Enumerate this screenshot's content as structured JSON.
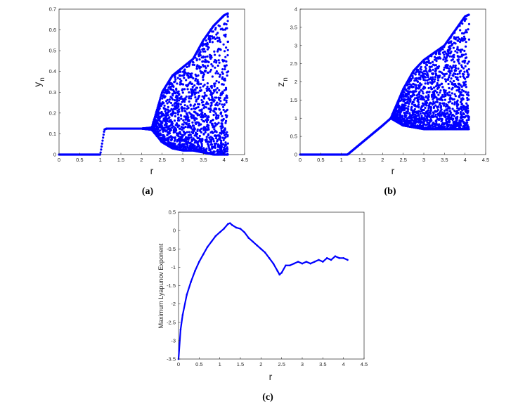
{
  "colors": {
    "series": "#0000ff",
    "axis": "#262626"
  },
  "panel_labels": {
    "a": "(a)",
    "b": "(b)",
    "c": "(c)"
  },
  "chart_data": [
    {
      "id": "a",
      "type": "scatter",
      "xlabel": "r",
      "ylabel_main": "y",
      "ylabel_sub": "n",
      "xlim": [
        0,
        4.5
      ],
      "ylim": [
        0,
        0.7
      ],
      "xticks": [
        "0",
        "0.5",
        "1",
        "1.5",
        "2",
        "2.5",
        "3",
        "3.5",
        "4",
        "4.5"
      ],
      "yticks": [
        "0",
        "0.1",
        "0.2",
        "0.3",
        "0.4",
        "0.5",
        "0.6",
        "0.7"
      ],
      "grid": false,
      "x": [
        0.0,
        0.5,
        1.0,
        1.05,
        1.1,
        1.15,
        1.5,
        2.0,
        2.25,
        2.5,
        2.75,
        3.0,
        3.25,
        3.5,
        3.75,
        4.0,
        4.1
      ],
      "y_min": [
        0,
        0,
        0,
        0.06,
        0.12,
        0.125,
        0.125,
        0.125,
        0.12,
        0.06,
        0.03,
        0.02,
        0.02,
        0.01,
        0.0,
        0.0,
        0.0
      ],
      "y_max": [
        0,
        0,
        0,
        0.06,
        0.12,
        0.125,
        0.125,
        0.125,
        0.13,
        0.3,
        0.38,
        0.42,
        0.46,
        0.55,
        0.62,
        0.67,
        0.68
      ]
    },
    {
      "id": "b",
      "type": "scatter",
      "xlabel": "r",
      "ylabel_main": "z",
      "ylabel_sub": "n",
      "xlim": [
        0,
        4.5
      ],
      "ylim": [
        0,
        4
      ],
      "xticks": [
        "0",
        "0.5",
        "1",
        "1.5",
        "2",
        "2.5",
        "3",
        "3.5",
        "4",
        "4.5"
      ],
      "yticks": [
        "0",
        "0.5",
        "1",
        "1.5",
        "2",
        "2.5",
        "3",
        "3.5",
        "4"
      ],
      "grid": false,
      "x": [
        0.0,
        0.5,
        1.0,
        1.15,
        1.5,
        2.0,
        2.2,
        2.5,
        2.75,
        3.0,
        3.25,
        3.5,
        3.75,
        4.0,
        4.1
      ],
      "y_min": [
        0,
        0,
        0,
        0.0,
        0.33,
        0.8,
        1.0,
        0.8,
        0.75,
        0.7,
        0.7,
        0.7,
        0.7,
        0.7,
        0.7
      ],
      "y_max": [
        0,
        0,
        0,
        0.0,
        0.33,
        0.8,
        1.0,
        1.8,
        2.3,
        2.6,
        2.8,
        3.0,
        3.4,
        3.8,
        3.85
      ]
    },
    {
      "id": "c",
      "type": "line",
      "xlabel": "r",
      "ylabel": "Maximum Lyapunov Exponent",
      "xlim": [
        0,
        4.5
      ],
      "ylim": [
        -3.5,
        0.5
      ],
      "xticks": [
        "0",
        "0.5",
        "1",
        "1.5",
        "2",
        "2.5",
        "3",
        "3.5",
        "4",
        "4.5"
      ],
      "yticks": [
        "-3.5",
        "-3",
        "-2.5",
        "-2",
        "-1.5",
        "-1",
        "-0.5",
        "0",
        "0.5"
      ],
      "grid": false,
      "x": [
        0.0,
        0.05,
        0.1,
        0.2,
        0.3,
        0.4,
        0.5,
        0.6,
        0.7,
        0.8,
        0.9,
        1.0,
        1.1,
        1.2,
        1.25,
        1.3,
        1.4,
        1.5,
        1.6,
        1.7,
        1.8,
        1.9,
        2.0,
        2.1,
        2.2,
        2.3,
        2.4,
        2.45,
        2.5,
        2.6,
        2.7,
        2.8,
        2.9,
        3.0,
        3.1,
        3.2,
        3.3,
        3.4,
        3.5,
        3.6,
        3.7,
        3.8,
        3.9,
        4.0,
        4.1
      ],
      "y": [
        -3.5,
        -2.7,
        -2.3,
        -1.75,
        -1.4,
        -1.1,
        -0.85,
        -0.65,
        -0.45,
        -0.3,
        -0.15,
        -0.05,
        0.05,
        0.18,
        0.2,
        0.15,
        0.08,
        0.05,
        -0.05,
        -0.2,
        -0.3,
        -0.4,
        -0.5,
        -0.6,
        -0.75,
        -0.9,
        -1.1,
        -1.2,
        -1.15,
        -0.95,
        -0.95,
        -0.9,
        -0.85,
        -0.9,
        -0.85,
        -0.9,
        -0.85,
        -0.8,
        -0.85,
        -0.75,
        -0.8,
        -0.7,
        -0.75,
        -0.75,
        -0.8
      ]
    }
  ]
}
